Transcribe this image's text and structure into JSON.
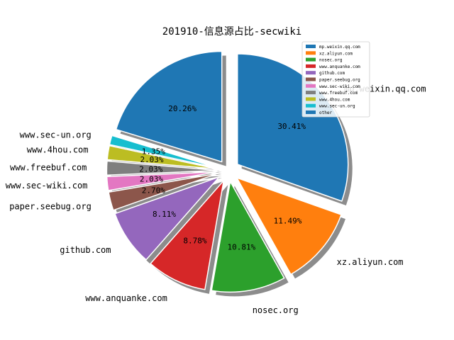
{
  "chart_data": {
    "type": "pie",
    "title": "201910-信息源占比-secwiki",
    "start_angle_deg": 90,
    "direction": "clockwise",
    "shadow": true,
    "legend": {
      "placement": "top-right"
    },
    "slices": [
      {
        "label": "mp.weixin.qq.com",
        "value": 30.41,
        "pct_label": "30.41%",
        "color": "#1f77b4",
        "exploded": true
      },
      {
        "label": "xz.aliyun.com",
        "value": 11.49,
        "pct_label": "11.49%",
        "color": "#ff7f0e",
        "exploded": true
      },
      {
        "label": "nosec.org",
        "value": 10.81,
        "pct_label": "10.81%",
        "color": "#2ca02c",
        "exploded": true
      },
      {
        "label": "www.anquanke.com",
        "value": 8.78,
        "pct_label": "8.78%",
        "color": "#d62728",
        "exploded": true
      },
      {
        "label": "github.com",
        "value": 8.11,
        "pct_label": "8.11%",
        "color": "#9467bd",
        "exploded": true
      },
      {
        "label": "paper.seebug.org",
        "value": 2.7,
        "pct_label": "2.70%",
        "color": "#8c564b",
        "exploded": true
      },
      {
        "label": "www.sec-wiki.com",
        "value": 2.03,
        "pct_label": "2.03%",
        "color": "#e377c2",
        "exploded": true
      },
      {
        "label": "www.freebuf.com",
        "value": 2.03,
        "pct_label": "2.03%",
        "color": "#7f7f7f",
        "exploded": true
      },
      {
        "label": "www.4hou.com",
        "value": 2.03,
        "pct_label": "2.03%",
        "color": "#bcbd22",
        "exploded": true
      },
      {
        "label": "www.sec-un.org",
        "value": 1.35,
        "pct_label": "1.35%",
        "color": "#17becf",
        "exploded": true
      },
      {
        "label": "other",
        "value": 20.26,
        "pct_label": "20.26%",
        "color": "#1f77b4",
        "exploded": true
      }
    ]
  }
}
